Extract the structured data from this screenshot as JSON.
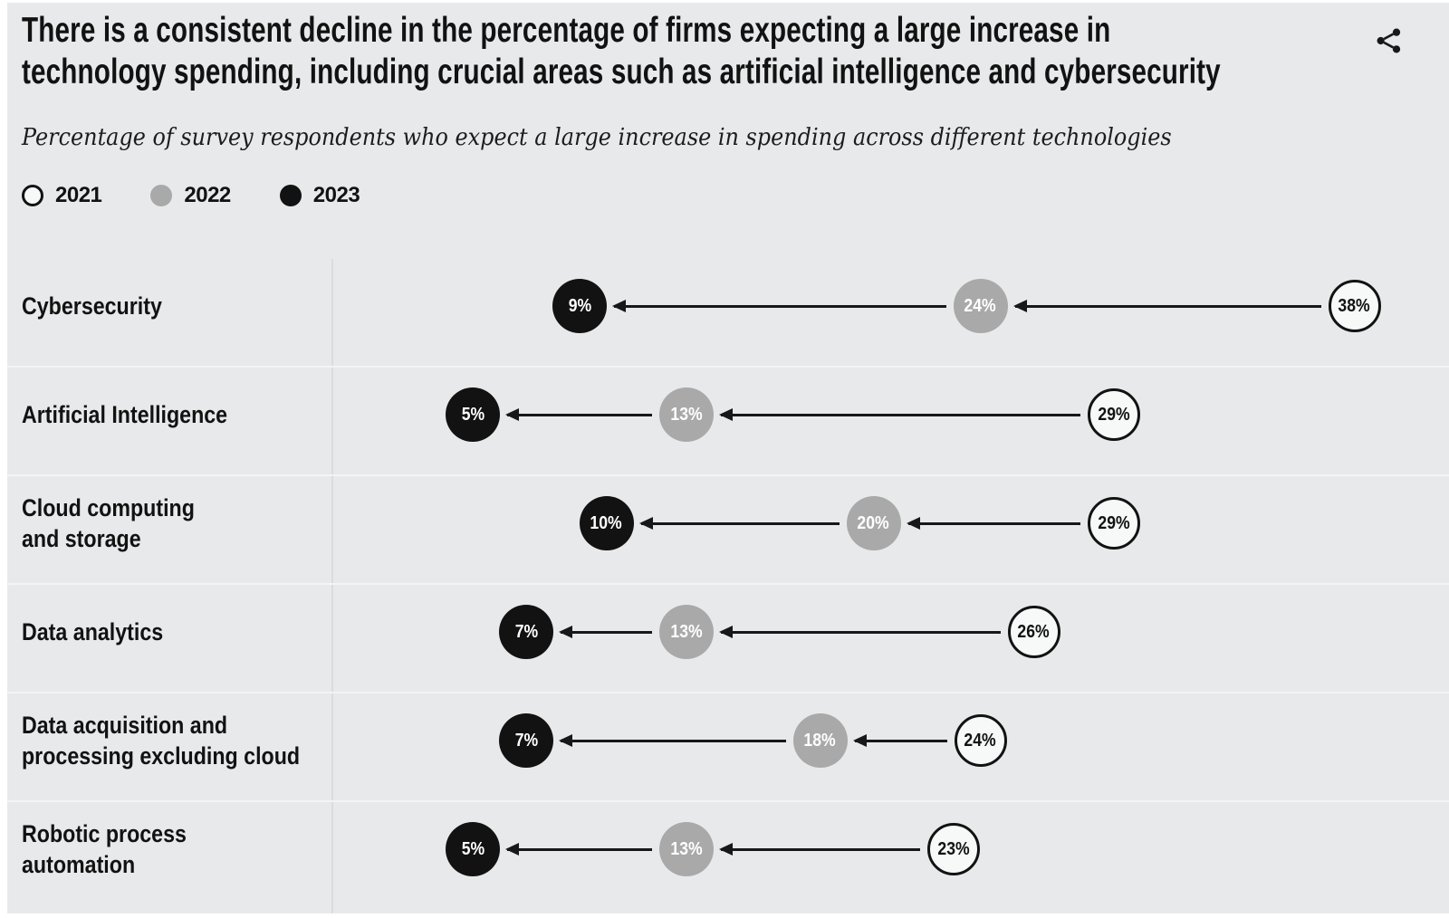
{
  "header": {
    "title_lines": [
      "There is a consistent decline in the percentage of firms expecting a large increase in",
      "technology spending, including crucial areas such as artificial intelligence and cybersecurity"
    ],
    "subtitle": "Percentage of survey respondents who expect a large increase in spending across different technologies"
  },
  "legend": {
    "items": [
      {
        "label": "2021",
        "swatch": "outline-circle"
      },
      {
        "label": "2022",
        "swatch": "gray-circle"
      },
      {
        "label": "2023",
        "swatch": "black-circle"
      }
    ]
  },
  "icons": {
    "share": "share-icon"
  },
  "colors": {
    "background": "#e8e9ea",
    "ink": "#121212",
    "gray_dot": "#a9a9a9",
    "white_dot_fill": "#f7f8f8",
    "row_separator": "#f3f4f4",
    "column_divider": "#dadcdd"
  },
  "chart_data": {
    "type": "scatter",
    "subtype": "dot-plot-dumbbell-with-arrows",
    "categories": [
      "Cybersecurity",
      "Artificial Intelligence",
      "Cloud computing\nand storage",
      "Data analytics",
      "Data acquisition and\nprocessing excluding cloud",
      "Robotic process\nautomation"
    ],
    "series": [
      {
        "name": "2021",
        "style": "outline",
        "values": [
          38,
          29,
          29,
          26,
          24,
          23
        ]
      },
      {
        "name": "2022",
        "style": "gray",
        "values": [
          24,
          13,
          20,
          13,
          18,
          13
        ]
      },
      {
        "name": "2023",
        "style": "black",
        "values": [
          9,
          5,
          10,
          7,
          7,
          5
        ]
      }
    ],
    "value_suffix": "%",
    "xlim": [
      0,
      40
    ],
    "x_axis_visible": false,
    "grid": "off",
    "arrows": "leftward from 2021 value to 2022 value to 2023 value, indicating decline",
    "legend_position": "top-left"
  }
}
